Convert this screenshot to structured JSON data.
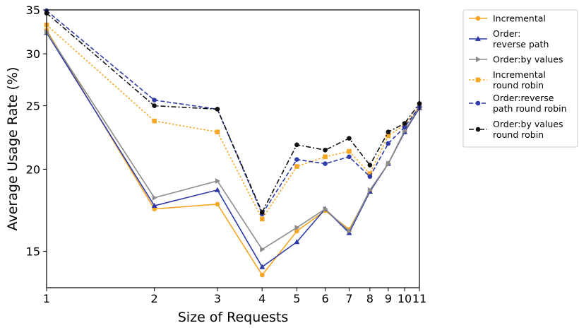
{
  "chart_data": {
    "type": "line",
    "xlabel": "Size of Requests",
    "ylabel": "Average Usage Rate (%)",
    "x_scale": "log",
    "y_scale": "log",
    "xlim": [
      1,
      11
    ],
    "ylim": [
      13.2,
      35
    ],
    "x_ticks": [
      1,
      2,
      3,
      4,
      5,
      6,
      7,
      8,
      9,
      10,
      11
    ],
    "y_ticks": [
      15,
      20,
      25,
      30,
      35
    ],
    "grid": false,
    "legend_position": "outside-right",
    "x": [
      1,
      2,
      3,
      4,
      5,
      6,
      7,
      8,
      9,
      10,
      11
    ],
    "series": [
      {
        "name": "Incremental",
        "color": "#f5a623",
        "style": "solid",
        "marker": "circle",
        "values": [
          32.6,
          17.4,
          17.7,
          13.8,
          16.1,
          17.3,
          16.2,
          18.5,
          20.4,
          22.8,
          24.8
        ]
      },
      {
        "name": "Order:\nreverse path",
        "color": "#2e3ba8",
        "style": "solid",
        "marker": "triangle-up",
        "values": [
          32.3,
          17.6,
          18.6,
          14.2,
          15.5,
          17.4,
          16.0,
          18.5,
          20.4,
          22.8,
          24.8
        ]
      },
      {
        "name": "Order:by values",
        "color": "#8c8c8c",
        "style": "solid",
        "marker": "triangle-right",
        "values": [
          32.4,
          18.1,
          19.2,
          15.1,
          16.3,
          17.4,
          16.1,
          18.6,
          20.4,
          22.9,
          24.9
        ]
      },
      {
        "name": "Incremental\n round robin",
        "color": "#f5a623",
        "style": "dotted",
        "marker": "square",
        "values": [
          33.2,
          23.7,
          22.8,
          16.8,
          20.2,
          20.9,
          21.3,
          19.7,
          22.5,
          23.4,
          24.9
        ]
      },
      {
        "name": "Order:reverse\npath round robin",
        "color": "#2e3ba8",
        "style": "dashed",
        "marker": "circle",
        "values": [
          34.9,
          25.5,
          24.7,
          17.1,
          20.7,
          20.4,
          20.9,
          19.5,
          21.9,
          23.2,
          24.9
        ]
      },
      {
        "name": "Order:by values\nround robin",
        "color": "#111111",
        "style": "dashdot",
        "marker": "circle",
        "values": [
          34.6,
          25.0,
          24.7,
          17.2,
          21.8,
          21.4,
          22.3,
          20.3,
          22.8,
          23.5,
          25.2
        ]
      }
    ]
  }
}
